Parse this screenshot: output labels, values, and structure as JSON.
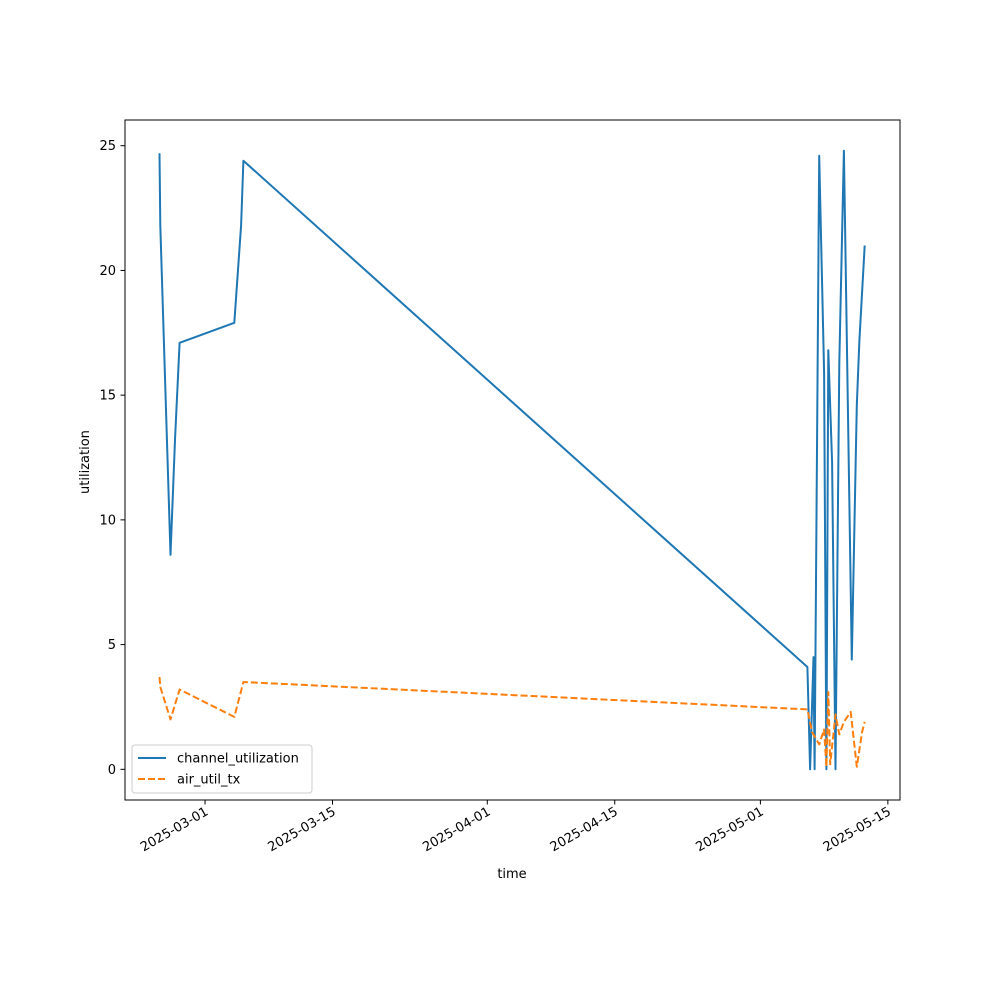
{
  "chart_data": {
    "type": "line",
    "title": "",
    "xlabel": "time",
    "ylabel": "utilization",
    "x_type": "date",
    "xlim": [
      "2025-02-20T05:00",
      "2025-05-16T08:00"
    ],
    "ylim": [
      -1.23,
      26.03
    ],
    "x_ticks": [
      "2025-03-01",
      "2025-03-15",
      "2025-04-01",
      "2025-04-15",
      "2025-05-01",
      "2025-05-15"
    ],
    "y_ticks": [
      0,
      5,
      10,
      15,
      20,
      25
    ],
    "grid": false,
    "legend": {
      "placement": "lower-left"
    },
    "series": [
      {
        "name": "channel_utilization",
        "color": "#1f77b4",
        "dash": "solid",
        "points": [
          [
            "2025-02-24T00:00",
            24.7
          ],
          [
            "2025-02-24T02:00",
            21.8
          ],
          [
            "2025-02-25T05:00",
            8.6
          ],
          [
            "2025-02-25T17:00",
            13.3
          ],
          [
            "2025-02-26T05:00",
            17.1
          ],
          [
            "2025-03-04T05:00",
            17.9
          ],
          [
            "2025-03-04T23:00",
            21.8
          ],
          [
            "2025-03-05T05:00",
            24.4
          ],
          [
            "2025-05-06T04:00",
            4.1
          ],
          [
            "2025-05-06T11:00",
            0.0
          ],
          [
            "2025-05-06T20:00",
            4.5
          ],
          [
            "2025-05-06T23:00",
            0.0
          ],
          [
            "2025-05-07T11:00",
            24.6
          ],
          [
            "2025-05-08T00:00",
            15.9
          ],
          [
            "2025-05-08T06:00",
            0.0
          ],
          [
            "2025-05-08T11:00",
            16.8
          ],
          [
            "2025-05-08T21:00",
            12.3
          ],
          [
            "2025-05-09T06:00",
            0.0
          ],
          [
            "2025-05-09T16:00",
            16.3
          ],
          [
            "2025-05-10T04:00",
            24.8
          ],
          [
            "2025-05-11T01:00",
            4.4
          ],
          [
            "2025-05-11T14:00",
            14.6
          ],
          [
            "2025-05-11T21:00",
            17.2
          ],
          [
            "2025-05-12T11:00",
            21.0
          ]
        ]
      },
      {
        "name": "air_util_tx",
        "color": "#ff7f0e",
        "dash": "dashed",
        "points": [
          [
            "2025-02-24T00:00",
            3.7
          ],
          [
            "2025-02-24T02:00",
            3.3
          ],
          [
            "2025-02-25T05:00",
            2.0
          ],
          [
            "2025-02-26T05:00",
            3.2
          ],
          [
            "2025-03-04T05:00",
            2.1
          ],
          [
            "2025-03-05T05:00",
            3.5
          ],
          [
            "2025-05-06T04:00",
            2.4
          ],
          [
            "2025-05-06T16:00",
            1.5
          ],
          [
            "2025-05-07T11:00",
            1.0
          ],
          [
            "2025-05-08T00:00",
            1.6
          ],
          [
            "2025-05-08T06:00",
            0.1
          ],
          [
            "2025-05-08T11:00",
            3.1
          ],
          [
            "2025-05-08T16:00",
            0.2
          ],
          [
            "2025-05-09T06:00",
            2.2
          ],
          [
            "2025-05-09T16:00",
            1.4
          ],
          [
            "2025-05-10T04:00",
            1.9
          ],
          [
            "2025-05-10T22:00",
            2.3
          ],
          [
            "2025-05-11T14:00",
            0.1
          ],
          [
            "2025-05-12T04:00",
            1.5
          ],
          [
            "2025-05-12T11:00",
            1.9
          ]
        ]
      }
    ]
  }
}
